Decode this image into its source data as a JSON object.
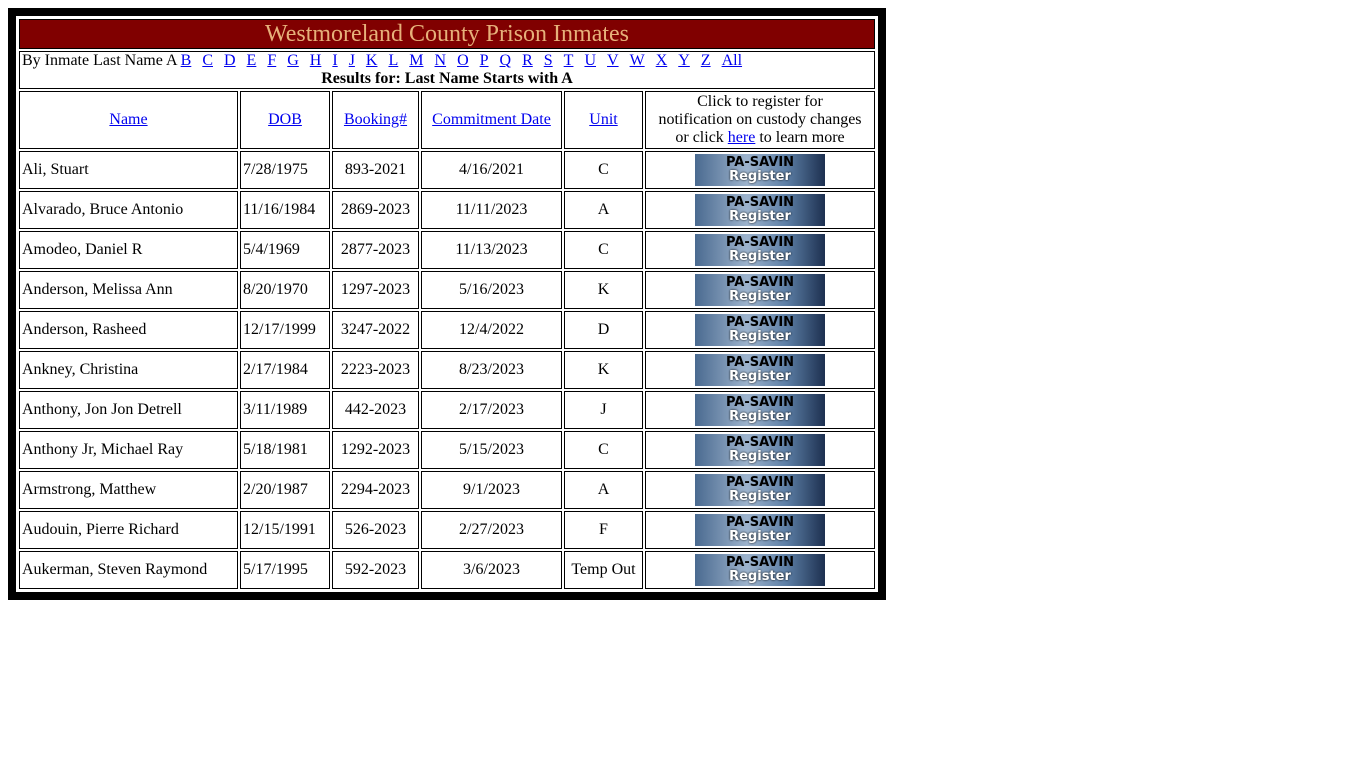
{
  "title": "Westmoreland County Prison Inmates",
  "nav": {
    "prefix": "By Inmate Last Name A",
    "letters": [
      "B",
      "C",
      "D",
      "E",
      "F",
      "G",
      "H",
      "I",
      "J",
      "K",
      "L",
      "M",
      "N",
      "O",
      "P",
      "Q",
      "R",
      "S",
      "T",
      "U",
      "V",
      "W",
      "X",
      "Y",
      "Z",
      "All"
    ],
    "results": "Results for: Last Name Starts with A"
  },
  "headers": {
    "name": "Name",
    "dob": "DOB",
    "booking": "Booking#",
    "commitment": "Commitment Date",
    "unit": "Unit",
    "register_line1": "Click to register for",
    "register_line2": "notification on custody changes",
    "register_pre": "or click",
    "register_link": "here",
    "register_post": "to learn more"
  },
  "savin": {
    "line1": "PA-SAVIN",
    "line2": "Register"
  },
  "rows": [
    [
      "Ali, Stuart",
      "7/28/1975",
      "893-2021",
      "4/16/2021",
      "C"
    ],
    [
      "Alvarado, Bruce Antonio",
      "11/16/1984",
      "2869-2023",
      "11/11/2023",
      "A"
    ],
    [
      "Amodeo, Daniel R",
      "5/4/1969",
      "2877-2023",
      "11/13/2023",
      "C"
    ],
    [
      "Anderson, Melissa Ann",
      "8/20/1970",
      "1297-2023",
      "5/16/2023",
      "K"
    ],
    [
      "Anderson, Rasheed",
      "12/17/1999",
      "3247-2022",
      "12/4/2022",
      "D"
    ],
    [
      "Ankney, Christina",
      "2/17/1984",
      "2223-2023",
      "8/23/2023",
      "K"
    ],
    [
      "Anthony, Jon Jon Detrell",
      "3/11/1989",
      "442-2023",
      "2/17/2023",
      "J"
    ],
    [
      "Anthony Jr, Michael Ray",
      "5/18/1981",
      "1292-2023",
      "5/15/2023",
      "C"
    ],
    [
      "Armstrong, Matthew",
      "2/20/1987",
      "2294-2023",
      "9/1/2023",
      "A"
    ],
    [
      "Audouin, Pierre Richard",
      "12/15/1991",
      "526-2023",
      "2/27/2023",
      "F"
    ],
    [
      "Aukerman, Steven Raymond",
      "5/17/1995",
      "592-2023",
      "3/6/2023",
      "Temp Out"
    ]
  ]
}
